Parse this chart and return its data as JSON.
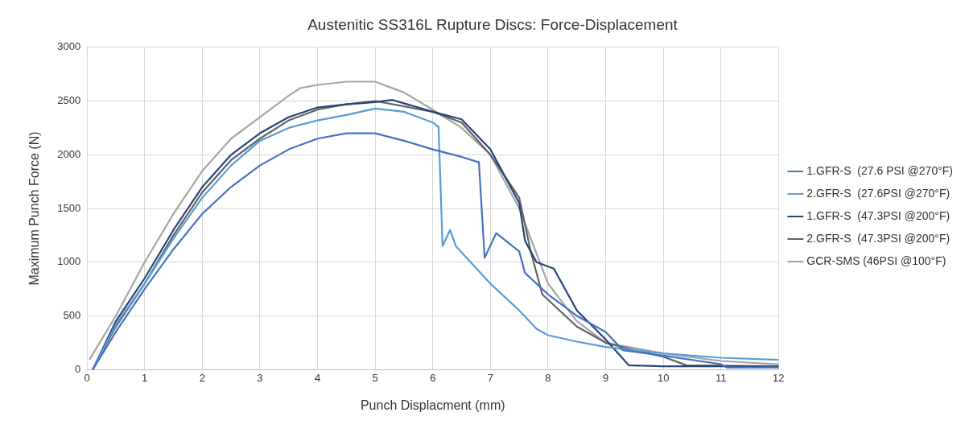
{
  "chart_data": {
    "type": "line",
    "title": "Austenitic SS316L Rupture Discs: Force-Displacement",
    "xlabel": "Punch Displacment (mm)",
    "ylabel": "Maximum Punch Force (N)",
    "xlim": [
      0,
      12
    ],
    "xticks": [
      0,
      1,
      2,
      3,
      4,
      5,
      6,
      7,
      8,
      9,
      10,
      11,
      12
    ],
    "ylim": [
      0,
      3000
    ],
    "yticks": [
      0,
      500,
      1000,
      1500,
      2000,
      2500,
      3000
    ],
    "grid": true,
    "legend": "right",
    "marker": "none",
    "line_style": "solid",
    "series": [
      {
        "name": "1.GFR-S  (27.6 PSI @270°F)",
        "color": "#4472c4",
        "x": [
          0.1,
          0.5,
          1,
          1.5,
          2,
          2.5,
          3,
          3.5,
          4,
          4.5,
          5,
          5.5,
          6,
          6.5,
          6.8,
          6.9,
          7.1,
          7.5,
          7.6,
          8,
          8.5,
          9,
          9.3,
          10,
          11,
          11.1,
          12
        ],
        "values": [
          0,
          350,
          750,
          1120,
          1450,
          1700,
          1900,
          2050,
          2150,
          2200,
          2200,
          2130,
          2050,
          1980,
          1930,
          1040,
          1270,
          1100,
          900,
          700,
          500,
          350,
          180,
          130,
          50,
          20,
          20
        ]
      },
      {
        "name": "2.GFR-S  (27.6PSI @270°F)",
        "color": "#5b9bd5",
        "x": [
          0.1,
          0.5,
          1,
          1.5,
          2,
          2.5,
          3,
          3.5,
          4,
          4.5,
          5,
          5.5,
          6,
          6.1,
          6.17,
          6.3,
          6.4,
          7,
          7.5,
          7.8,
          8,
          8.5,
          9,
          10,
          11,
          12
        ],
        "values": [
          0,
          420,
          800,
          1220,
          1600,
          1900,
          2130,
          2250,
          2320,
          2370,
          2430,
          2400,
          2300,
          2260,
          1150,
          1300,
          1150,
          800,
          550,
          380,
          320,
          260,
          210,
          150,
          110,
          90
        ]
      },
      {
        "name": "1.GFR-S  (47.3PSI @200°F)",
        "color": "#264478",
        "x": [
          0.1,
          0.5,
          1,
          1.5,
          2,
          2.5,
          3,
          3.5,
          4,
          4.5,
          5,
          5.3,
          6,
          6.5,
          7,
          7.3,
          7.5,
          7.6,
          7.8,
          8.1,
          8.5,
          9,
          9.3,
          9.4,
          10,
          12
        ],
        "values": [
          0,
          450,
          850,
          1300,
          1700,
          2000,
          2200,
          2350,
          2440,
          2470,
          2490,
          2510,
          2400,
          2330,
          2050,
          1750,
          1550,
          1200,
          1000,
          940,
          550,
          280,
          100,
          40,
          30,
          30
        ]
      },
      {
        "name": "2.GFR-S  (47.3PSI @200°F)",
        "color": "#636363",
        "x": [
          0.1,
          0.5,
          1,
          1.5,
          2,
          2.5,
          3,
          3.5,
          4,
          4.5,
          5,
          6,
          6.5,
          7,
          7.5,
          7.7,
          7.9,
          8.5,
          9,
          9.5,
          10,
          10.4,
          12
        ],
        "values": [
          0,
          400,
          800,
          1250,
          1650,
          1950,
          2150,
          2320,
          2420,
          2470,
          2500,
          2400,
          2300,
          2000,
          1600,
          1100,
          700,
          400,
          250,
          180,
          120,
          40,
          30
        ]
      },
      {
        "name": "GCR-SMS (46PSI @100°F)",
        "color": "#a5a5a5",
        "x": [
          0.05,
          0.5,
          1,
          1.5,
          2,
          2.5,
          3,
          3.5,
          3.7,
          4,
          4.5,
          5,
          5.5,
          6,
          6.5,
          7,
          7.5,
          8,
          8.5,
          9,
          10,
          11,
          12
        ],
        "values": [
          100,
          500,
          1000,
          1450,
          1850,
          2150,
          2350,
          2550,
          2620,
          2650,
          2680,
          2680,
          2580,
          2420,
          2250,
          2000,
          1500,
          800,
          450,
          250,
          150,
          80,
          50
        ]
      }
    ]
  }
}
